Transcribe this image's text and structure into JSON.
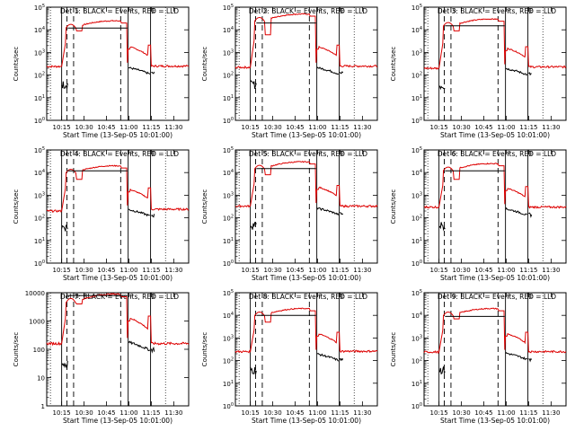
{
  "common": {
    "type": "line",
    "ylabel": "Counts/sec",
    "xlabel": "Start Time (13-Sep-05 10:01:00)",
    "x_ticks": [
      "10:15",
      "10:30",
      "10:45",
      "11:00",
      "11:15",
      "11:30"
    ],
    "yscale": "log",
    "colors": {
      "events": "#000000",
      "lld": "#dd0000"
    }
  },
  "chart_data": [
    {
      "title": "Det 1: BLACK = Events, RED = LLD",
      "ylim": [
        1,
        100000
      ],
      "y_ticks": [
        "10^0",
        "10^1",
        "10^2",
        "10^3",
        "10^4",
        "10^5"
      ],
      "pre_red": 240,
      "peak": 25000,
      "dip": 9000,
      "post_red": 700,
      "late_red": 250,
      "pre_black": 40,
      "post_black": 120,
      "flare_black": 12000
    },
    {
      "title": "Det 2: BLACK = Events, RED = LLD",
      "ylim": [
        1,
        100000
      ],
      "y_ticks": [
        "10^0",
        "10^1",
        "10^2",
        "10^3",
        "10^4",
        "10^5"
      ],
      "pre_red": 220,
      "peak": 50000,
      "dip": 6000,
      "post_red": 700,
      "late_red": 250,
      "pre_black": 40,
      "post_black": 120,
      "flare_black": 20000
    },
    {
      "title": "Det 3: BLACK = Events, RED = LLD",
      "ylim": [
        1,
        100000
      ],
      "y_ticks": [
        "10^0",
        "10^1",
        "10^2",
        "10^3",
        "10^4",
        "10^5"
      ],
      "pre_red": 200,
      "peak": 30000,
      "dip": 9000,
      "post_red": 600,
      "late_red": 230,
      "pre_black": 35,
      "post_black": 110,
      "flare_black": 15000
    },
    {
      "title": "Det 4: BLACK = Events, RED = LLD",
      "ylim": [
        1,
        100000
      ],
      "y_ticks": [
        "10^0",
        "10^1",
        "10^2",
        "10^3",
        "10^4",
        "10^5"
      ],
      "pre_red": 200,
      "peak": 20000,
      "dip": 5000,
      "post_red": 700,
      "late_red": 240,
      "pre_black": 40,
      "post_black": 130,
      "flare_black": 12000
    },
    {
      "title": "Det 5: BLACK = Events, RED = LLD",
      "ylim": [
        1,
        100000
      ],
      "y_ticks": [
        "10^0",
        "10^1",
        "10^2",
        "10^3",
        "10^4",
        "10^5"
      ],
      "pre_red": 330,
      "peak": 30000,
      "dip": 8000,
      "post_red": 900,
      "late_red": 330,
      "pre_black": 50,
      "post_black": 150,
      "flare_black": 15000
    },
    {
      "title": "Det 6: BLACK = Events, RED = LLD",
      "ylim": [
        1,
        100000
      ],
      "y_ticks": [
        "10^0",
        "10^1",
        "10^2",
        "10^3",
        "10^4",
        "10^5"
      ],
      "pre_red": 300,
      "peak": 25000,
      "dip": 5000,
      "post_red": 800,
      "late_red": 300,
      "pre_black": 50,
      "post_black": 140,
      "flare_black": 12000
    },
    {
      "title": "Det 7: BLACK = Events, RED = LLD",
      "ylim": [
        1,
        10000
      ],
      "y_ticks": [
        "1",
        "10",
        "100",
        "1000",
        "10000"
      ],
      "pre_red": 160,
      "peak": 9000,
      "dip": 4000,
      "post_red": 500,
      "late_red": 160,
      "pre_black": 30,
      "post_black": 100,
      "flare_black": 8000
    },
    {
      "title": "Det 8: BLACK = Events, RED = LLD",
      "ylim": [
        1,
        100000
      ],
      "y_ticks": [
        "10^0",
        "10^1",
        "10^2",
        "10^3",
        "10^4",
        "10^5"
      ],
      "pre_red": 250,
      "peak": 20000,
      "dip": 5000,
      "post_red": 600,
      "late_red": 260,
      "pre_black": 40,
      "post_black": 110,
      "flare_black": 10000
    },
    {
      "title": "Det 9: BLACK = Events, RED = LLD",
      "ylim": [
        1,
        100000
      ],
      "y_ticks": [
        "10^0",
        "10^1",
        "10^2",
        "10^3",
        "10^4",
        "10^5"
      ],
      "pre_red": 240,
      "peak": 20000,
      "dip": 7000,
      "post_red": 600,
      "late_red": 250,
      "pre_black": 40,
      "post_black": 120,
      "flare_black": 9000
    }
  ]
}
